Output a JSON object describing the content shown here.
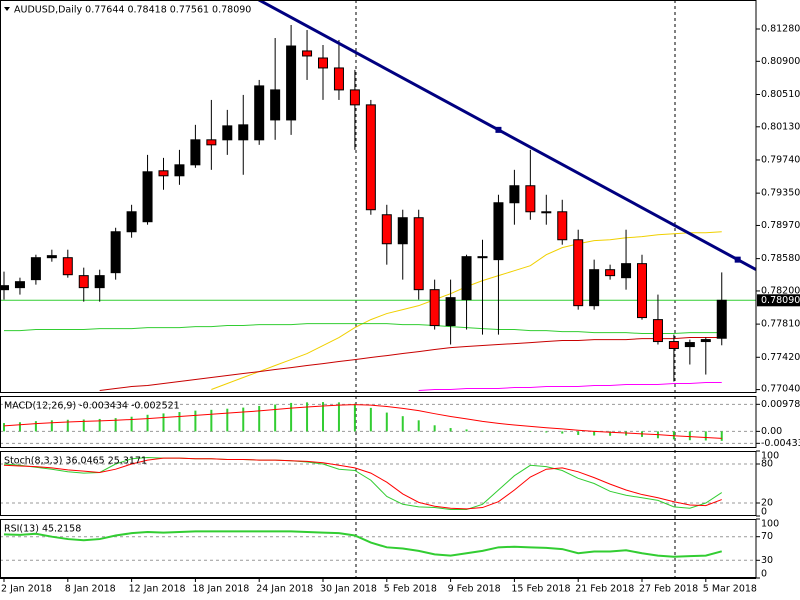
{
  "chart_data": [
    {
      "type": "candlestick",
      "title": "AUDUSD,Daily  0.77644 0.78418 0.77561 0.78090",
      "categories": [
        "2 Jan 2018",
        null,
        null,
        null,
        "8 Jan 2018",
        null,
        null,
        null,
        "12 Jan 2018",
        null,
        null,
        null,
        "18 Jan 2018",
        null,
        null,
        null,
        "24 Jan 2018",
        null,
        null,
        null,
        "30 Jan 2018",
        null,
        null,
        null,
        "5 Feb 2018",
        null,
        null,
        null,
        "9 Feb 2018",
        null,
        null,
        null,
        "15 Feb 2018",
        null,
        null,
        null,
        "21 Feb 2018",
        null,
        null,
        null,
        "27 Feb 2018",
        null,
        null,
        null,
        "5 Mar 2018",
        null
      ],
      "open": [
        0.78215,
        0.78239,
        0.78333,
        0.78591,
        0.78591,
        0.7838,
        0.78239,
        0.78415,
        0.78896,
        0.79014,
        0.79613,
        0.79554,
        0.79683,
        0.79977,
        0.79977,
        0.79977,
        0.79977,
        0.80211,
        0.80211,
        0.81022,
        0.80939,
        0.80822,
        0.80564,
        0.80388,
        0.79096,
        0.78755,
        0.79061,
        0.78215,
        0.77793,
        0.78098,
        0.78591,
        0.78568,
        0.79237,
        0.79437,
        0.79131,
        0.79131,
        0.78802,
        0.78027,
        0.7845,
        0.78356,
        0.78521,
        0.77863,
        0.77605,
        0.77546,
        0.77605,
        0.77644
      ],
      "high": [
        0.78427,
        0.78356,
        0.78626,
        0.78685,
        0.78685,
        0.78474,
        0.7845,
        0.78943,
        0.79213,
        0.798,
        0.79765,
        0.79859,
        0.80153,
        0.80446,
        0.80329,
        0.80505,
        0.80681,
        0.81174,
        0.81327,
        0.81268,
        0.81092,
        0.81151,
        0.80799,
        0.80446,
        0.79213,
        0.79155,
        0.79155,
        0.78333,
        0.78333,
        0.78626,
        0.78802,
        0.79331,
        0.79624,
        0.79859,
        0.79331,
        0.79272,
        0.7892,
        0.78568,
        0.78509,
        0.7892,
        0.78626,
        0.78157,
        0.77687,
        0.77628,
        0.77652,
        0.78418
      ],
      "low": [
        0.78098,
        0.78157,
        0.78274,
        0.78544,
        0.78356,
        0.78074,
        0.78074,
        0.78333,
        0.78826,
        0.78979,
        0.7939,
        0.79448,
        0.79648,
        0.79624,
        0.798,
        0.79566,
        0.79918,
        0.79977,
        0.80035,
        0.80681,
        0.80446,
        0.80446,
        0.79859,
        0.79096,
        0.78509,
        0.78333,
        0.78098,
        0.77746,
        0.7757,
        0.77746,
        0.77687,
        0.77687,
        0.78979,
        0.79037,
        0.78979,
        0.78744,
        0.7798,
        0.7798,
        0.78333,
        0.78215,
        0.77863,
        0.7757,
        0.77135,
        0.77335,
        0.77217,
        0.77561
      ],
      "close": [
        0.78262,
        0.78309,
        0.78591,
        0.78615,
        0.78391,
        0.78239,
        0.7838,
        0.78896,
        0.79131,
        0.79601,
        0.79554,
        0.79683,
        0.79977,
        0.79918,
        0.80141,
        0.80153,
        0.80611,
        0.80564,
        0.8108,
        0.80963,
        0.80822,
        0.80564,
        0.80388,
        0.79155,
        0.78755,
        0.79061,
        0.78215,
        0.77793,
        0.78121,
        0.78603,
        0.78603,
        0.79237,
        0.79437,
        0.79131,
        0.79119,
        0.78802,
        0.78027,
        0.7845,
        0.7838,
        0.78521,
        0.77887,
        0.77605,
        0.77523,
        0.77593,
        0.77628,
        0.7809
      ],
      "up_color": "#000000",
      "down_color": "#ff0000",
      "ylim": [
        0.77,
        0.81621
      ],
      "yticks": [
        {
          "value": 0.8128,
          "label": "0.81280"
        },
        {
          "value": 0.809,
          "label": "0.80900"
        },
        {
          "value": 0.8051,
          "label": "0.80510"
        },
        {
          "value": 0.8013,
          "label": "0.80130"
        },
        {
          "value": 0.7974,
          "label": "0.79740"
        },
        {
          "value": 0.7935,
          "label": "0.79350"
        },
        {
          "value": 0.7897,
          "label": "0.78970"
        },
        {
          "value": 0.7858,
          "label": "0.78580"
        },
        {
          "value": 0.782,
          "label": "0.78200"
        },
        {
          "value": 0.7781,
          "label": "0.77810"
        },
        {
          "value": 0.7742,
          "label": "0.77420"
        },
        {
          "value": 0.7704,
          "label": "0.77040"
        }
      ],
      "overlays": [
        {
          "color": "#f0d000",
          "values": [
            null,
            null,
            null,
            null,
            null,
            null,
            null,
            null,
            null,
            null,
            null,
            null,
            null,
            0.77041,
            0.77112,
            0.77182,
            0.77252,
            0.77323,
            0.77393,
            0.77464,
            0.77558,
            0.77652,
            0.77769,
            0.77863,
            0.77934,
            0.7798,
            0.78027,
            0.78098,
            0.78168,
            0.78251,
            0.78321,
            0.7838,
            0.78438,
            0.78497,
            0.78626,
            0.78709,
            0.78755,
            0.78791,
            0.78802,
            0.78826,
            0.78838,
            0.78861,
            0.78873,
            0.78885,
            0.78885,
            0.78896
          ]
        },
        {
          "color": "#32cd32",
          "values": [
            0.77734,
            0.77734,
            0.77746,
            0.77746,
            0.77746,
            0.77746,
            0.77757,
            0.77757,
            0.77757,
            0.77769,
            0.77769,
            0.77769,
            0.77781,
            0.77781,
            0.77793,
            0.77793,
            0.77804,
            0.77804,
            0.77804,
            0.77816,
            0.77816,
            0.77816,
            0.77816,
            0.77816,
            0.77816,
            0.77804,
            0.77804,
            0.77793,
            0.77781,
            0.77769,
            0.77757,
            0.77746,
            0.77746,
            0.77734,
            0.77734,
            0.77722,
            0.77722,
            0.7771,
            0.7771,
            0.7771,
            0.77699,
            0.77699,
            0.77699,
            0.7771,
            0.7771,
            0.7771
          ]
        },
        {
          "color": "#c80000",
          "values": [
            null,
            null,
            null,
            null,
            null,
            null,
            0.77029,
            0.77053,
            0.77076,
            0.77088,
            0.77112,
            0.77135,
            0.77159,
            0.77182,
            0.77206,
            0.77229,
            0.77252,
            0.77276,
            0.77299,
            0.77323,
            0.77346,
            0.7737,
            0.77393,
            0.77417,
            0.7744,
            0.77464,
            0.77487,
            0.77511,
            0.77534,
            0.77546,
            0.77558,
            0.7757,
            0.77581,
            0.77593,
            0.77605,
            0.77617,
            0.77617,
            0.77628,
            0.77628,
            0.77628,
            0.7764,
            0.7764,
            0.7764,
            0.77652,
            0.77652,
            0.77652
          ]
        },
        {
          "color": "#ff00ff",
          "values": [
            null,
            null,
            null,
            null,
            null,
            null,
            null,
            null,
            null,
            null,
            null,
            null,
            null,
            null,
            null,
            null,
            null,
            null,
            null,
            null,
            null,
            null,
            null,
            null,
            null,
            null,
            0.77029,
            0.77041,
            0.77041,
            0.77053,
            0.77053,
            0.77053,
            0.77065,
            0.77065,
            0.77076,
            0.77076,
            0.77076,
            0.77088,
            0.77088,
            0.771,
            0.771,
            0.771,
            0.77112,
            0.77112,
            0.77123,
            0.77123
          ]
        }
      ],
      "trendline": {
        "color": "#000080",
        "x": [
          31,
          46
        ],
        "values": [
          0.80094,
          0.78568
        ]
      },
      "price_label": {
        "value": 0.7809,
        "label": "0.78090"
      }
    },
    {
      "type": "bar",
      "title": "MACD(12,26,9) -0.003434 -0.002521",
      "series": [
        {
          "color": "#32cd32",
          "values": [
            0.003,
            0.0033,
            0.0037,
            0.004,
            0.0042,
            0.0043,
            0.0045,
            0.0048,
            0.0053,
            0.006,
            0.0065,
            0.007,
            0.0075,
            0.0078,
            0.0082,
            0.0086,
            0.0092,
            0.0097,
            0.0103,
            0.0105,
            0.0106,
            0.0105,
            0.01,
            0.0085,
            0.0068,
            0.0055,
            0.004,
            0.0022,
            0.0012,
            0.0007,
            0.0002,
            0.0001,
            0,
            -0.0002,
            -0.0004,
            -0.0008,
            -0.0013,
            -0.0015,
            -0.0016,
            -0.0015,
            -0.002,
            -0.0025,
            -0.0029,
            -0.0032,
            -0.0033,
            -0.003434
          ]
        },
        {
          "color": "#ff0000",
          "values": [
            0.002,
            0.0024,
            0.0028,
            0.0031,
            0.0034,
            0.0036,
            0.0038,
            0.004,
            0.0043,
            0.0046,
            0.005,
            0.0054,
            0.0058,
            0.0062,
            0.0066,
            0.007,
            0.0074,
            0.0079,
            0.0084,
            0.0088,
            0.0092,
            0.0095,
            0.0097,
            0.0095,
            0.009,
            0.0083,
            0.0075,
            0.0064,
            0.0054,
            0.0045,
            0.0036,
            0.0029,
            0.0023,
            0.0018,
            0.0013,
            0.0009,
            0.0004,
            0,
            -0.0003,
            -0.0006,
            -0.0009,
            -0.0012,
            -0.0016,
            -0.0019,
            -0.0022,
            -0.002521
          ]
        }
      ],
      "ylim": [
        -0.00602,
        0.0128
      ],
      "yticks": [
        0.009789,
        {
          "value": 0,
          "label": "0.00"
        },
        -0.004333
      ]
    },
    {
      "type": "line",
      "title": "Stoch(8,3,3) 36.0465 25.3171",
      "series": [
        {
          "color": "#32cd32",
          "values": [
            80,
            78,
            75,
            72,
            68,
            66,
            67,
            80,
            88,
            90,
            89,
            89,
            88,
            88,
            87,
            87,
            86,
            86,
            85,
            83,
            80,
            72,
            70,
            55,
            30,
            18,
            14,
            13,
            10,
            10,
            18,
            40,
            62,
            78,
            76,
            70,
            58,
            50,
            38,
            32,
            28,
            24,
            14,
            12,
            20,
            36.0465
          ]
        },
        {
          "color": "#ff0000",
          "values": [
            78,
            77,
            76,
            74,
            71,
            69,
            67,
            72,
            80,
            86,
            89,
            89,
            88,
            88,
            87,
            87,
            86,
            86,
            85,
            84,
            82,
            78,
            74,
            66,
            52,
            34,
            21,
            15,
            12,
            11,
            13,
            22,
            40,
            60,
            72,
            74,
            68,
            59,
            49,
            40,
            33,
            28,
            22,
            17,
            16,
            25.3171
          ]
        }
      ],
      "ylim": [
        0,
        100
      ],
      "yticks": [
        100,
        80,
        20,
        0
      ]
    },
    {
      "type": "line",
      "title": "RSI(13) 45.2158",
      "series": [
        {
          "color": "#32cd32",
          "values": [
            74,
            73,
            75,
            70,
            66,
            64,
            66,
            72,
            76,
            78,
            77,
            78,
            79,
            79,
            79,
            79,
            79,
            79,
            79,
            78,
            77,
            76,
            72,
            60,
            52,
            50,
            46,
            40,
            38,
            42,
            46,
            52,
            53,
            52,
            51,
            49,
            42,
            45,
            45,
            47,
            42,
            38,
            36,
            37,
            38,
            45.2158
          ]
        }
      ],
      "ylim": [
        0,
        100
      ],
      "yticks": [
        100,
        70,
        30,
        0
      ]
    }
  ]
}
